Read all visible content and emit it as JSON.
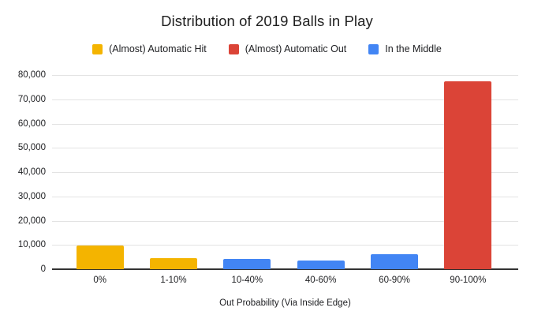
{
  "title": "Distribution of 2019 Balls in Play",
  "x_axis_title": "Out Probability (Via Inside Edge)",
  "legend": {
    "position": "top",
    "items": [
      {
        "label": "(Almost) Automatic Hit",
        "color": "#F4B400"
      },
      {
        "label": "(Almost) Automatic Out",
        "color": "#DB4437"
      },
      {
        "label": "In the Middle",
        "color": "#4285F4"
      }
    ]
  },
  "chart_data": {
    "type": "bar",
    "title": "Distribution of 2019 Balls in Play",
    "xlabel": "Out Probability (Via Inside Edge)",
    "ylabel": "",
    "categories": [
      "0%",
      "1-10%",
      "10-40%",
      "40-60%",
      "60-90%",
      "90-100%"
    ],
    "values": [
      9700,
      4700,
      4200,
      3700,
      6300,
      77300
    ],
    "bar_colors": [
      "#F4B400",
      "#F4B400",
      "#4285F4",
      "#4285F4",
      "#4285F4",
      "#DB4437"
    ],
    "bar_series": [
      "(Almost) Automatic Hit",
      "(Almost) Automatic Hit",
      "In the Middle",
      "In the Middle",
      "In the Middle",
      "(Almost) Automatic Out"
    ],
    "series": [
      {
        "name": "(Almost) Automatic Hit",
        "color": "#F4B400",
        "points": [
          {
            "category": "0%",
            "value": 9700
          },
          {
            "category": "1-10%",
            "value": 4700
          }
        ]
      },
      {
        "name": "(Almost) Automatic Out",
        "color": "#DB4437",
        "points": [
          {
            "category": "90-100%",
            "value": 77300
          }
        ]
      },
      {
        "name": "In the Middle",
        "color": "#4285F4",
        "points": [
          {
            "category": "10-40%",
            "value": 4200
          },
          {
            "category": "40-60%",
            "value": 3700
          },
          {
            "category": "60-90%",
            "value": 6300
          }
        ]
      }
    ],
    "ylim": [
      0,
      80000
    ],
    "y_tick_step": 10000,
    "y_tick_labels": [
      "0",
      "10,000",
      "20,000",
      "30,000",
      "40,000",
      "50,000",
      "60,000",
      "70,000",
      "80,000"
    ],
    "grid": true,
    "legend_position": "top",
    "colors": {
      "background": "#ffffff",
      "axis_line": "#333333",
      "gridline": "#e3e3e3",
      "text": "#202124"
    }
  }
}
